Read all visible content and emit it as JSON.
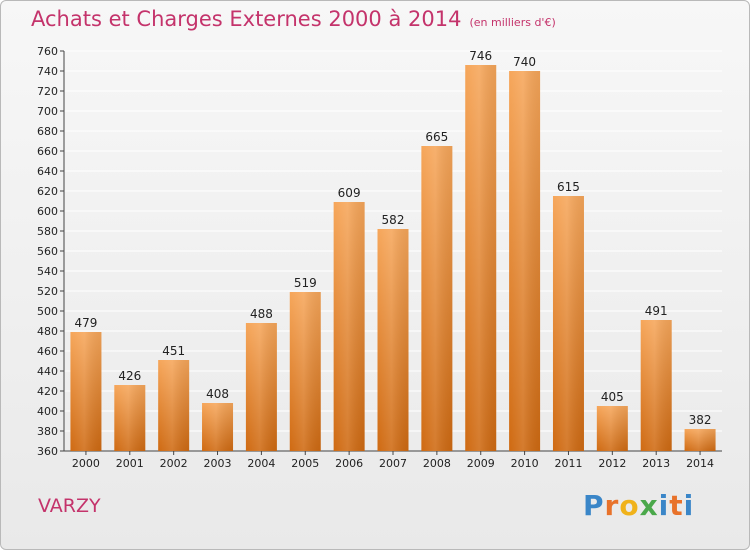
{
  "page": {
    "title": "Achats et Charges Externes 2000 à 2014",
    "subtitle": "(en milliers d'€)",
    "commune": "VARZY",
    "logo_text": "Proxiti"
  },
  "colors": {
    "title": "#c4336b",
    "bar_top": "#f6a65a",
    "bar_bottom": "#cf6a12",
    "grid": "#ffffff",
    "logo_letters": [
      "#3a86c8",
      "#e8722a",
      "#f0b21a",
      "#4aa84a",
      "#3a86c8",
      "#e8722a",
      "#3a86c8"
    ]
  },
  "chart_data": {
    "type": "bar",
    "title": "Achats et Charges Externes 2000 à 2014",
    "xlabel": "",
    "ylabel": "",
    "categories": [
      "2000",
      "2001",
      "2002",
      "2003",
      "2004",
      "2005",
      "2006",
      "2007",
      "2008",
      "2009",
      "2010",
      "2011",
      "2012",
      "2013",
      "2014"
    ],
    "values": [
      479,
      426,
      451,
      408,
      488,
      519,
      609,
      582,
      665,
      746,
      740,
      615,
      405,
      491,
      382
    ],
    "ylim": [
      360,
      760
    ],
    "ytick_step": 20,
    "grid": true,
    "legend": "none"
  }
}
